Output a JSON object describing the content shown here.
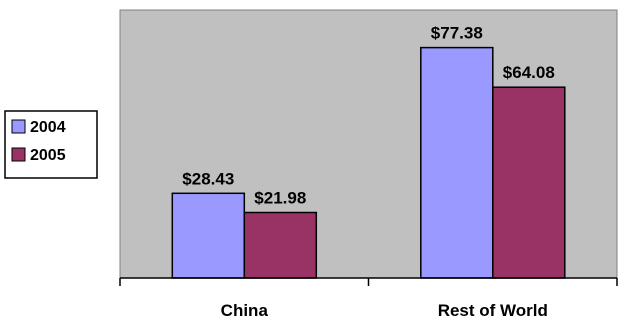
{
  "chart_data": {
    "type": "bar",
    "categories": [
      "China",
      "Rest of World"
    ],
    "series": [
      {
        "name": "2004",
        "values": [
          28.43,
          77.38
        ],
        "labels": [
          "$28.43",
          "$77.38"
        ],
        "color": "#9999ff"
      },
      {
        "name": "2005",
        "values": [
          21.98,
          64.08
        ],
        "labels": [
          "$21.98",
          "$64.08"
        ],
        "color": "#993366"
      }
    ],
    "ylim": [
      0,
      90
    ],
    "grid": false,
    "legend_position": "left",
    "plot_background": "#c0c0c0"
  }
}
